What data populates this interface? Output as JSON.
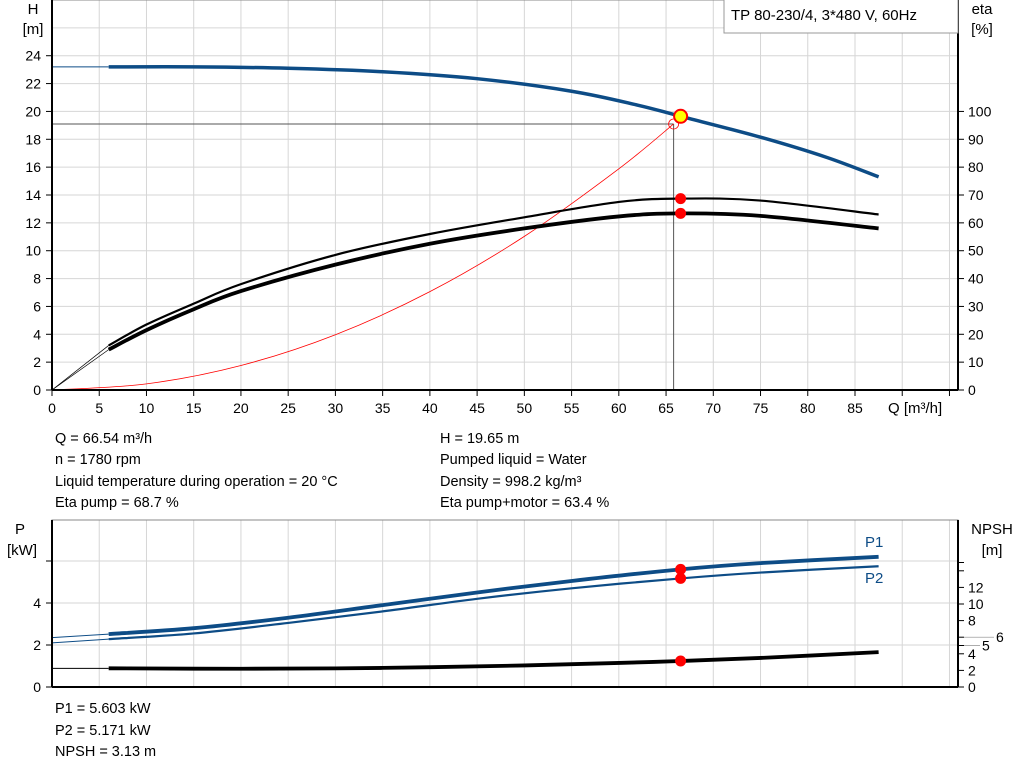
{
  "title_box": "TP 80-230/4, 3*480 V, 60Hz",
  "info_top": {
    "left": [
      "Q = 66.54 m³/h",
      "n = 1780 rpm",
      "Liquid temperature during operation = 20 °C",
      "Eta pump = 68.7 %"
    ],
    "right": [
      "H = 19.65 m",
      "Pumped liquid = Water",
      "Density = 998.2 kg/m³",
      "Eta pump+motor = 63.4 %"
    ]
  },
  "info_bottom": [
    "P1 = 5.603 kW",
    "P2 = 5.171 kW",
    "NPSH = 3.13 m"
  ],
  "colors": {
    "blue": "#0d4c86",
    "black": "#000000",
    "red": "#ff0000",
    "yellow": "#ffff00",
    "grid": "#d6d6d6"
  },
  "chart_data": [
    {
      "type": "line",
      "xlabel": "Q [m³/h]",
      "ylabel_left": "H",
      "ylabel_left_unit": "[m]",
      "ylabel_right": "eta",
      "ylabel_right_unit": "[%]",
      "xlim": [
        0,
        96
      ],
      "ylim_left": [
        0,
        28
      ],
      "ylim_right": [
        0,
        140
      ],
      "x_ticks": [
        "0",
        "5",
        "10",
        "15",
        "20",
        "25",
        "30",
        "35",
        "40",
        "45",
        "50",
        "55",
        "60",
        "65",
        "70",
        "75",
        "80",
        "85"
      ],
      "y_left_ticks": [
        "0",
        "2",
        "4",
        "6",
        "8",
        "10",
        "12",
        "14",
        "16",
        "18",
        "20",
        "22",
        "24"
      ],
      "y_right_ticks": [
        "0",
        "10",
        "20",
        "30",
        "40",
        "50",
        "60",
        "70",
        "80",
        "90",
        "100"
      ],
      "grid": true,
      "series": [
        {
          "id": "H",
          "axis": "left",
          "color": "#0d4c86",
          "x": [
            6,
            15,
            25,
            35,
            45,
            55,
            62,
            66.54,
            75,
            82,
            87.5
          ],
          "y": [
            23.2,
            23.2,
            23.1,
            22.85,
            22.35,
            21.45,
            20.45,
            19.65,
            18.15,
            16.7,
            15.3
          ]
        },
        {
          "id": "eta_pump",
          "axis": "right",
          "color": "#000000",
          "x": [
            6,
            10,
            15,
            20,
            30,
            40,
            50,
            60,
            66.54,
            75,
            87.5
          ],
          "y": [
            16,
            23.5,
            31,
            38,
            48.5,
            56,
            62,
            67.5,
            68.7,
            68,
            63
          ]
        },
        {
          "id": "eta_pump_motor",
          "axis": "right",
          "color": "#000000",
          "x": [
            6,
            10,
            15,
            20,
            30,
            40,
            50,
            60,
            66.54,
            75,
            87.5
          ],
          "y": [
            14.5,
            21.5,
            29,
            35.5,
            45,
            52.5,
            58,
            62.3,
            63.4,
            62.5,
            58
          ]
        },
        {
          "id": "system_curve",
          "axis": "left",
          "color": "#ff0000",
          "x": [
            0,
            10,
            20,
            30,
            40,
            50,
            60,
            65.8
          ],
          "y": [
            0,
            0.44,
            1.76,
            3.97,
            7.06,
            11.03,
            15.88,
            19.1
          ]
        }
      ],
      "duty_point": {
        "Q": 66.54,
        "H": 19.65,
        "eta_pump": 68.7,
        "eta_pump_motor": 63.4
      },
      "system_point": {
        "Q": 65.8,
        "H": 19.1
      }
    },
    {
      "type": "line",
      "ylabel_left": "P",
      "ylabel_left_unit": "[kW]",
      "ylabel_right": "NPSH",
      "ylabel_right_unit": "[m]",
      "xlim": [
        0,
        96
      ],
      "ylim_left": [
        0,
        8
      ],
      "ylim_right": [
        0,
        20
      ],
      "y_left_ticks": [
        "0",
        "2",
        "4"
      ],
      "y_right_ticks": [
        "0",
        "2",
        "4",
        "5",
        "6",
        "8",
        "10",
        "12"
      ],
      "grid": true,
      "series": [
        {
          "name": "P1",
          "axis": "left",
          "color": "#0d4c86",
          "x": [
            6,
            15,
            25,
            35,
            45,
            55,
            66.54,
            75,
            87.5
          ],
          "y": [
            2.52,
            2.8,
            3.3,
            3.9,
            4.5,
            5.05,
            5.603,
            5.9,
            6.2
          ]
        },
        {
          "name": "P2",
          "axis": "left",
          "color": "#0d4c86",
          "x": [
            6,
            15,
            25,
            35,
            45,
            55,
            66.54,
            75,
            87.5
          ],
          "y": [
            2.28,
            2.55,
            3.05,
            3.6,
            4.2,
            4.7,
            5.171,
            5.45,
            5.75
          ]
        },
        {
          "id": "NPSH",
          "axis": "right",
          "color": "#000000",
          "x": [
            6,
            20,
            35,
            50,
            60,
            66.54,
            75,
            87.5
          ],
          "y": [
            2.25,
            2.2,
            2.3,
            2.6,
            2.9,
            3.13,
            3.5,
            4.2
          ]
        }
      ],
      "duty_point": {
        "Q": 66.54,
        "P1": 5.603,
        "P2": 5.171,
        "NPSH": 3.13
      }
    }
  ]
}
